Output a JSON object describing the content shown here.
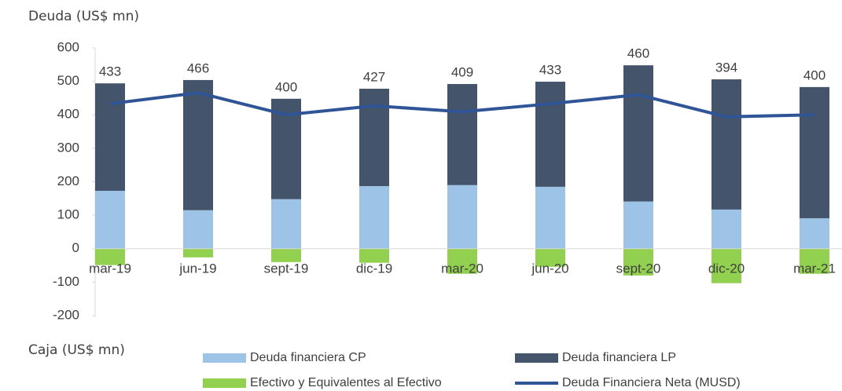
{
  "chart_data": {
    "type": "bar",
    "y_axis_title": "Deuda (US$ mn)",
    "y_axis_title_bottom": "Caja (US$ mn)",
    "categories": [
      "mar-19",
      "jun-19",
      "sept-19",
      "dic-19",
      "mar-20",
      "jun-20",
      "sept-20",
      "dic-20",
      "mar-21"
    ],
    "series": [
      {
        "name": "Deuda financiera CP",
        "color": "#9dc3e6",
        "values": [
          173,
          115,
          148,
          187,
          190,
          185,
          141,
          117,
          91
        ]
      },
      {
        "name": "Deuda financiera LP",
        "color": "#44546a",
        "values": [
          321,
          389,
          300,
          291,
          302,
          314,
          407,
          389,
          392
        ]
      },
      {
        "name": "Efectivo y Equivalentes al Efectivo",
        "color": "#92d050",
        "values": [
          -49,
          -26,
          -40,
          -42,
          -75,
          -54,
          -80,
          -103,
          -75
        ]
      },
      {
        "name": "Deuda Financiera Neta (MUSD)",
        "color": "#2f5597",
        "values": [
          433,
          466,
          400,
          427,
          409,
          433,
          460,
          394,
          400
        ],
        "line": true
      }
    ],
    "ylim": [
      -200,
      600
    ],
    "yticks": [
      -200,
      -100,
      0,
      100,
      200,
      300,
      400,
      500,
      600
    ]
  }
}
